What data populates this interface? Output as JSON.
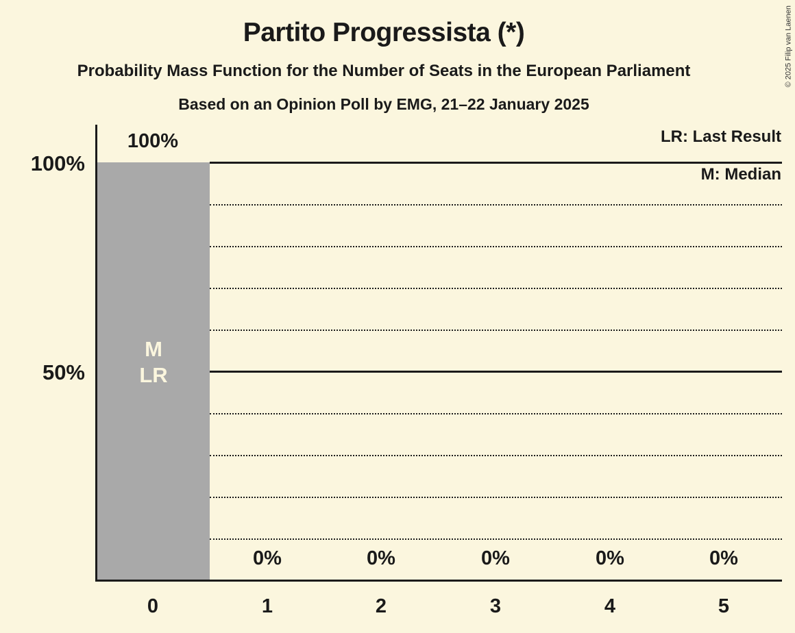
{
  "chart": {
    "copyright": "© 2025 Filip van Laenen",
    "colors": {
      "background": "#FBF6DE",
      "bar": "#A9A9A9",
      "text": "#1A1A1A",
      "bar_annotation_text": "#FBF6DE",
      "gridline": "#1A1A1A"
    }
  },
  "chart_data": {
    "type": "bar",
    "title": "Partito Progressista (*)",
    "subtitle": "Probability Mass Function for the Number of Seats in the European Parliament",
    "source_line": "Based on an Opinion Poll by EMG, 21–22 January 2025",
    "categories": [
      "0",
      "1",
      "2",
      "3",
      "4",
      "5"
    ],
    "values": [
      100,
      0,
      0,
      0,
      0,
      0
    ],
    "value_labels": [
      "100%",
      "0%",
      "0%",
      "0%",
      "0%",
      "0%"
    ],
    "xlabel": "",
    "ylabel": "",
    "ylim": [
      0,
      100
    ],
    "y_tick_labels": {
      "t100": "100%",
      "t50": "50%"
    },
    "gridlines": {
      "solid_pct": [
        100,
        50
      ],
      "dotted_pct": [
        90,
        80,
        70,
        60,
        40,
        30,
        20,
        10
      ]
    },
    "legend": {
      "position": "top-right",
      "lr": "LR: Last Result",
      "m": "M: Median"
    },
    "bar0_annotation": {
      "median": "M",
      "last_result": "LR"
    }
  }
}
